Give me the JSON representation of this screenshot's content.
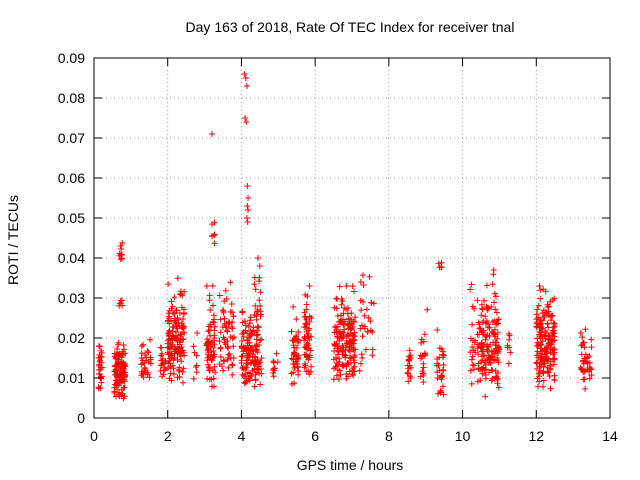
{
  "chart_data": {
    "type": "scatter",
    "title": "Day 163 of 2018, Rate Of TEC Index for receiver tnal",
    "xlabel": "GPS time / hours",
    "ylabel": "ROTI / TECUs",
    "xlim": [
      0,
      14
    ],
    "ylim": [
      0,
      0.09
    ],
    "xticks": [
      0,
      2,
      4,
      6,
      8,
      10,
      12,
      14
    ],
    "xtick_labels": [
      "0",
      "2",
      "4",
      "6",
      "8",
      "10",
      "12",
      "14"
    ],
    "yticks": [
      0,
      0.01,
      0.02,
      0.03,
      0.04,
      0.05,
      0.06,
      0.07,
      0.08,
      0.09
    ],
    "ytick_labels": [
      "0",
      "0.01",
      "0.02",
      "0.03",
      "0.04",
      "0.05",
      "0.06",
      "0.07",
      "0.08",
      "0.09"
    ],
    "grid": true,
    "marker": "+",
    "marker_color": "#ff0000",
    "clusters": [
      {
        "x_range": [
          0.12,
          0.22
        ],
        "y_range": [
          0.006,
          0.02
        ],
        "count": 30
      },
      {
        "x_range": [
          0.55,
          0.85
        ],
        "y_range": [
          0.004,
          0.021
        ],
        "count": 110
      },
      {
        "x_range": [
          0.68,
          0.8
        ],
        "y_range": [
          0.038,
          0.044
        ],
        "count": 10
      },
      {
        "x_range": [
          0.62,
          0.78
        ],
        "y_range": [
          0.027,
          0.031
        ],
        "count": 6
      },
      {
        "x_range": [
          1.28,
          1.55
        ],
        "y_range": [
          0.008,
          0.02
        ],
        "count": 30
      },
      {
        "x_range": [
          1.8,
          1.95
        ],
        "y_range": [
          0.009,
          0.019
        ],
        "count": 18
      },
      {
        "x_range": [
          2.0,
          2.45
        ],
        "y_range": [
          0.008,
          0.035
        ],
        "count": 140
      },
      {
        "x_range": [
          2.7,
          2.8
        ],
        "y_range": [
          0.008,
          0.027
        ],
        "count": 8
      },
      {
        "x_range": [
          3.05,
          3.3
        ],
        "y_range": [
          0.007,
          0.033
        ],
        "count": 70
      },
      {
        "x_range": [
          3.4,
          3.8
        ],
        "y_range": [
          0.008,
          0.036
        ],
        "count": 60
      },
      {
        "x_range": [
          3.2,
          3.28
        ],
        "y_range": [
          0.043,
          0.05
        ],
        "count": 8
      },
      {
        "x_range": [
          4.0,
          4.45
        ],
        "y_range": [
          0.006,
          0.028
        ],
        "count": 110
      },
      {
        "x_range": [
          4.35,
          4.55
        ],
        "y_range": [
          0.005,
          0.04
        ],
        "count": 40
      },
      {
        "x_range": [
          4.85,
          5.0
        ],
        "y_range": [
          0.01,
          0.017
        ],
        "count": 10
      },
      {
        "x_range": [
          5.35,
          5.55
        ],
        "y_range": [
          0.007,
          0.029
        ],
        "count": 45
      },
      {
        "x_range": [
          5.7,
          5.9
        ],
        "y_range": [
          0.008,
          0.036
        ],
        "count": 55
      },
      {
        "x_range": [
          6.5,
          7.1
        ],
        "y_range": [
          0.008,
          0.033
        ],
        "count": 160
      },
      {
        "x_range": [
          7.2,
          7.6
        ],
        "y_range": [
          0.008,
          0.038
        ],
        "count": 30
      },
      {
        "x_range": [
          8.5,
          8.6
        ],
        "y_range": [
          0.008,
          0.022
        ],
        "count": 16
      },
      {
        "x_range": [
          8.85,
          9.05
        ],
        "y_range": [
          0.008,
          0.03
        ],
        "count": 20
      },
      {
        "x_range": [
          9.3,
          9.5
        ],
        "y_range": [
          0.004,
          0.022
        ],
        "count": 30
      },
      {
        "x_range": [
          9.35,
          9.45
        ],
        "y_range": [
          0.037,
          0.042
        ],
        "count": 5
      },
      {
        "x_range": [
          10.2,
          10.35
        ],
        "y_range": [
          0.007,
          0.04
        ],
        "count": 20
      },
      {
        "x_range": [
          10.4,
          11.0
        ],
        "y_range": [
          0.004,
          0.037
        ],
        "count": 150
      },
      {
        "x_range": [
          11.2,
          11.3
        ],
        "y_range": [
          0.01,
          0.025
        ],
        "count": 8
      },
      {
        "x_range": [
          12.0,
          12.5
        ],
        "y_range": [
          0.006,
          0.033
        ],
        "count": 180
      },
      {
        "x_range": [
          13.2,
          13.5
        ],
        "y_range": [
          0.007,
          0.023
        ],
        "count": 40
      }
    ],
    "outliers": [
      {
        "x": 3.2,
        "y": 0.071
      },
      {
        "x": 4.08,
        "y": 0.086
      },
      {
        "x": 4.12,
        "y": 0.085
      },
      {
        "x": 4.15,
        "y": 0.083
      },
      {
        "x": 4.1,
        "y": 0.075
      },
      {
        "x": 4.13,
        "y": 0.074
      },
      {
        "x": 4.16,
        "y": 0.058
      },
      {
        "x": 4.18,
        "y": 0.055
      },
      {
        "x": 4.16,
        "y": 0.053
      },
      {
        "x": 4.18,
        "y": 0.052
      },
      {
        "x": 4.15,
        "y": 0.05
      },
      {
        "x": 4.17,
        "y": 0.049
      },
      {
        "x": 4.45,
        "y": 0.04
      },
      {
        "x": 4.5,
        "y": 0.038
      }
    ]
  }
}
